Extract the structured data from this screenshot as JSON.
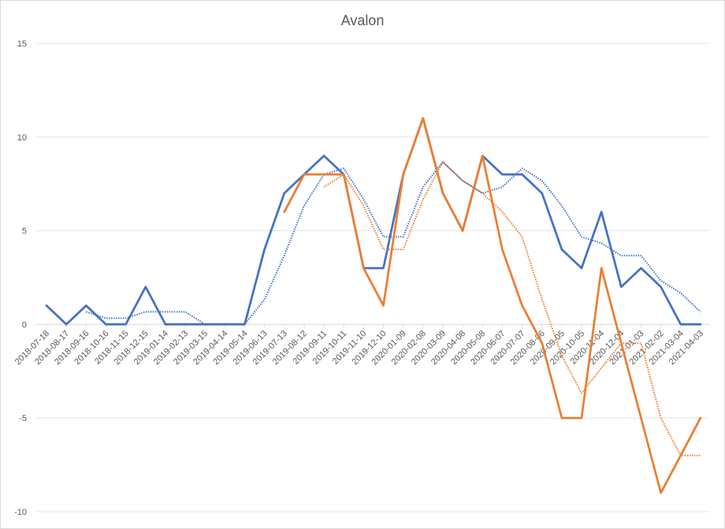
{
  "chart_data": {
    "type": "line",
    "title": "Avalon",
    "xlabel": "",
    "ylabel": "",
    "ylim": [
      -10,
      15
    ],
    "yticks": [
      -10,
      -5,
      0,
      5,
      10,
      15
    ],
    "grid": true,
    "legend": "none",
    "x": [
      "2018-07-18",
      "2018-08-17",
      "2018-09-16",
      "2018-10-16",
      "2018-11-15",
      "2018-12-15",
      "2019-01-14",
      "2019-02-13",
      "2019-03-15",
      "2019-04-14",
      "2019-05-14",
      "2019-06-13",
      "2019-07-13",
      "2019-08-12",
      "2019-09-11",
      "2019-10-11",
      "2019-11-10",
      "2019-12-10",
      "2020-01-09",
      "2020-02-08",
      "2020-03-09",
      "2020-04-08",
      "2020-05-08",
      "2020-06-07",
      "2020-07-07",
      "2020-08-06",
      "2020-09-05",
      "2020-10-05",
      "2020-11-04",
      "2020-12-04",
      "2021-01-03",
      "2021-02-02",
      "2021-03-04",
      "2021-04-03"
    ],
    "series": [
      {
        "color": "#4472c4",
        "style": "solid",
        "values": [
          1,
          0,
          1,
          0,
          0,
          2,
          0,
          0,
          0,
          0,
          0,
          4,
          7,
          8,
          9,
          8,
          3,
          3,
          8,
          11,
          7,
          5,
          9,
          8,
          8,
          7,
          4,
          3,
          6,
          2,
          3,
          2,
          0,
          0
        ]
      },
      {
        "color": "#4472c4",
        "style": "dotted",
        "values": [
          null,
          null,
          0.67,
          0.33,
          0.33,
          0.67,
          0.67,
          0.67,
          0,
          0,
          0,
          1.33,
          3.67,
          6.33,
          8,
          8.33,
          6.67,
          4.67,
          4.67,
          7.33,
          8.67,
          7.67,
          7,
          7.33,
          8.33,
          7.67,
          6.33,
          4.67,
          4.33,
          3.67,
          3.67,
          2.33,
          1.67,
          0.67
        ]
      },
      {
        "color": "#ed7d31",
        "style": "solid",
        "values": [
          null,
          null,
          null,
          null,
          null,
          null,
          null,
          null,
          null,
          null,
          null,
          null,
          6,
          8,
          8,
          8,
          3,
          1,
          8,
          11,
          7,
          5,
          9,
          4,
          1,
          -1,
          -5,
          -5,
          3,
          -1,
          -5,
          -9,
          -7,
          -5
        ]
      },
      {
        "color": "#ed7d31",
        "style": "dotted",
        "values": [
          null,
          null,
          null,
          null,
          null,
          null,
          null,
          null,
          null,
          null,
          null,
          null,
          null,
          null,
          7.33,
          8,
          6.33,
          4,
          4,
          6.67,
          8.67,
          7.67,
          7,
          6,
          4.67,
          1.33,
          -1.67,
          -3.67,
          -2.33,
          -1,
          -1,
          -5,
          -7,
          -7
        ]
      }
    ]
  }
}
